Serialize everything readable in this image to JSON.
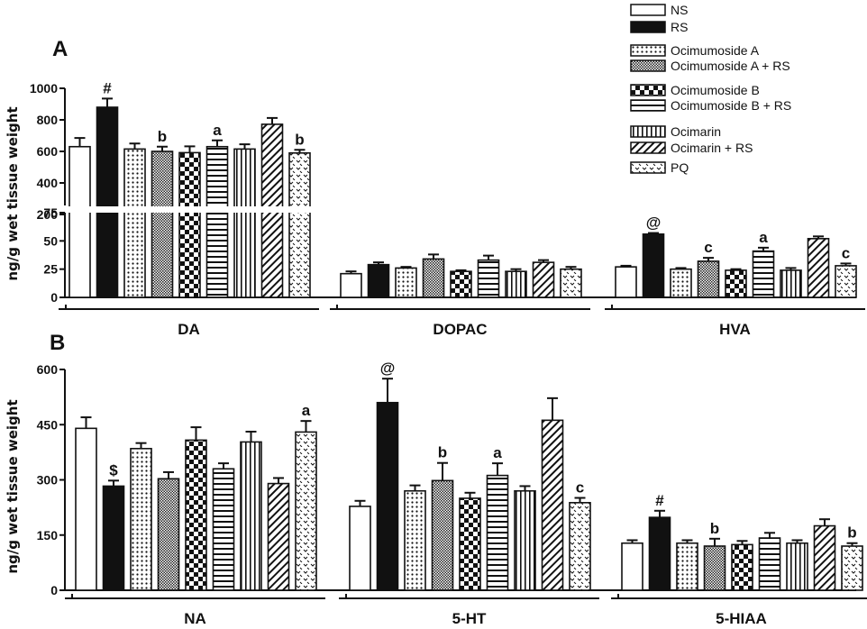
{
  "chart_data": [
    {
      "type": "bar",
      "panel": "A",
      "ylabel": "ng/g wet tissue weight",
      "axis_break": {
        "lower_range": [
          0,
          75
        ],
        "upper_range": [
          200,
          1000
        ]
      },
      "lower_ticks": [
        "0",
        "25",
        "50",
        "75"
      ],
      "upper_ticks": [
        "200",
        "400",
        "600",
        "800",
        "1000"
      ],
      "groups": [
        {
          "name": "DA",
          "values": [
            630,
            880,
            615,
            600,
            592,
            630,
            615,
            772,
            590
          ],
          "errors": [
            55,
            55,
            35,
            30,
            40,
            40,
            30,
            40,
            20
          ],
          "annotations": [
            "",
            "#",
            "",
            "b",
            "",
            "a",
            "",
            "",
            "b"
          ]
        },
        {
          "name": "DOPAC",
          "values": [
            21,
            29,
            26,
            34,
            23,
            33,
            23,
            31,
            25
          ],
          "errors": [
            2,
            2,
            1,
            4,
            1,
            4,
            2,
            2,
            2
          ],
          "annotations": [
            "",
            "",
            "",
            "",
            "",
            "",
            "",
            "",
            ""
          ]
        },
        {
          "name": "HVA",
          "values": [
            27,
            56,
            25,
            32,
            24,
            41,
            24,
            52,
            28
          ],
          "errors": [
            1,
            1,
            1,
            3,
            1,
            3,
            2,
            2,
            2
          ],
          "annotations": [
            "",
            "@",
            "",
            "c",
            "",
            "a",
            "",
            "",
            "c"
          ]
        }
      ]
    },
    {
      "type": "bar",
      "panel": "B",
      "ylabel": "ng/g wet tissue weight",
      "ylim": [
        0,
        600
      ],
      "ticks": [
        "0",
        "150",
        "300",
        "450",
        "600"
      ],
      "groups": [
        {
          "name": "NA",
          "values": [
            440,
            283,
            385,
            303,
            408,
            330,
            403,
            290,
            430
          ],
          "errors": [
            30,
            15,
            15,
            18,
            35,
            15,
            28,
            15,
            30
          ],
          "annotations": [
            "",
            "$",
            "",
            "",
            "",
            "",
            "",
            "",
            "a"
          ]
        },
        {
          "name": "5-HT",
          "values": [
            228,
            510,
            270,
            298,
            250,
            312,
            270,
            462,
            238
          ],
          "errors": [
            15,
            65,
            15,
            48,
            15,
            33,
            13,
            60,
            13
          ],
          "annotations": [
            "",
            "@",
            "",
            "b",
            "",
            "a",
            "",
            "",
            "c"
          ]
        },
        {
          "name": "5-HIAA",
          "values": [
            128,
            198,
            128,
            120,
            124,
            142,
            128,
            175,
            120
          ],
          "errors": [
            8,
            18,
            8,
            20,
            10,
            14,
            8,
            18,
            8
          ],
          "annotations": [
            "",
            "#",
            "",
            "b",
            "",
            "",
            "",
            "",
            "b"
          ]
        }
      ]
    }
  ],
  "legend": [
    "NS",
    "RS",
    "Ocimumoside A",
    "Ocimumoside A + RS",
    "Ocimumoside B",
    "Ocimumoside B + RS",
    "Ocimarin",
    "Ocimarin + RS",
    "PQ"
  ]
}
